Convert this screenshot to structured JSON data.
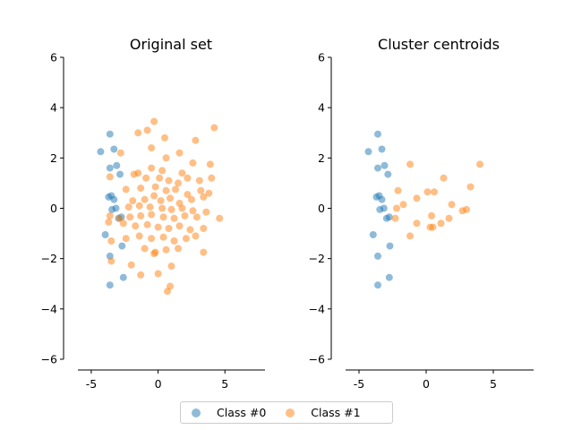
{
  "colors": {
    "class0": "#1f77b4",
    "class1": "#ff7f0e"
  },
  "legend": {
    "items": [
      {
        "label": "Class #0"
      },
      {
        "label": "Class #1"
      }
    ],
    "placement": "bottom-center"
  },
  "chart_data": [
    {
      "type": "scatter",
      "title": "Original set",
      "xlabel": "",
      "ylabel": "",
      "xlim": [
        -6,
        8
      ],
      "ylim": [
        -6,
        6
      ],
      "xticks": [
        "-5",
        "0",
        "5"
      ],
      "yticks": [
        "−6",
        "−4",
        "−2",
        "0",
        "2",
        "4",
        "6"
      ],
      "series": [
        {
          "name": "Class #0",
          "points": [
            [
              -4.3,
              2.25
            ],
            [
              -3.6,
              2.95
            ],
            [
              -3.3,
              2.35
            ],
            [
              -3.6,
              1.6
            ],
            [
              -3.1,
              1.7
            ],
            [
              -2.85,
              1.35
            ],
            [
              -3.7,
              0.45
            ],
            [
              -3.5,
              0.5
            ],
            [
              -3.3,
              0.35
            ],
            [
              -3.45,
              -0.05
            ],
            [
              -3.15,
              0.0
            ],
            [
              -2.95,
              -0.4
            ],
            [
              -2.75,
              -0.35
            ],
            [
              -3.95,
              -1.05
            ],
            [
              -2.7,
              -1.5
            ],
            [
              -3.6,
              -1.9
            ],
            [
              -3.6,
              -3.05
            ],
            [
              -2.6,
              -2.75
            ]
          ]
        },
        {
          "name": "Class #1",
          "points": [
            [
              -0.3,
              3.45
            ],
            [
              -0.8,
              3.1
            ],
            [
              -1.5,
              3.0
            ],
            [
              0.5,
              2.8
            ],
            [
              4.2,
              3.2
            ],
            [
              2.8,
              2.7
            ],
            [
              -0.5,
              2.4
            ],
            [
              0.6,
              2.0
            ],
            [
              1.6,
              2.2
            ],
            [
              2.6,
              1.8
            ],
            [
              -2.8,
              2.2
            ],
            [
              3.9,
              1.75
            ],
            [
              -0.5,
              1.6
            ],
            [
              0.3,
              1.5
            ],
            [
              1.8,
              1.4
            ],
            [
              -1.8,
              1.35
            ],
            [
              -1.5,
              1.4
            ],
            [
              -0.9,
              1.2
            ],
            [
              0.1,
              1.2
            ],
            [
              0.8,
              1.1
            ],
            [
              1.5,
              1.0
            ],
            [
              2.2,
              1.2
            ],
            [
              3.1,
              1.1
            ],
            [
              4.0,
              1.2
            ],
            [
              -3.6,
              1.25
            ],
            [
              -2.4,
              0.75
            ],
            [
              -1.3,
              0.8
            ],
            [
              -0.2,
              0.85
            ],
            [
              0.6,
              0.7
            ],
            [
              1.3,
              0.75
            ],
            [
              2.2,
              0.55
            ],
            [
              3.2,
              0.7
            ],
            [
              3.8,
              0.6
            ],
            [
              -1.9,
              0.3
            ],
            [
              -1.0,
              0.35
            ],
            [
              -0.3,
              0.5
            ],
            [
              0.2,
              0.3
            ],
            [
              0.9,
              0.4
            ],
            [
              1.6,
              0.2
            ],
            [
              2.5,
              0.35
            ],
            [
              3.4,
              0.45
            ],
            [
              -2.2,
              0.05
            ],
            [
              -1.4,
              0.1
            ],
            [
              -0.6,
              0.05
            ],
            [
              0.3,
              0.0
            ],
            [
              1.0,
              -0.05
            ],
            [
              1.8,
              0.0
            ],
            [
              2.6,
              -0.1
            ],
            [
              3.6,
              -0.15
            ],
            [
              4.6,
              -0.4
            ],
            [
              -3.6,
              -0.3
            ],
            [
              -2.9,
              -0.4
            ],
            [
              -2.1,
              -0.35
            ],
            [
              -1.3,
              -0.3
            ],
            [
              -0.5,
              -0.25
            ],
            [
              0.4,
              -0.35
            ],
            [
              1.2,
              -0.4
            ],
            [
              2.0,
              -0.3
            ],
            [
              2.9,
              -0.35
            ],
            [
              -3.7,
              -0.55
            ],
            [
              -2.6,
              -0.6
            ],
            [
              -1.7,
              -0.7
            ],
            [
              -0.8,
              -0.65
            ],
            [
              0.0,
              -0.75
            ],
            [
              0.8,
              -0.8
            ],
            [
              1.6,
              -0.7
            ],
            [
              2.4,
              -0.85
            ],
            [
              3.4,
              -0.8
            ],
            [
              -3.5,
              -1.3
            ],
            [
              -2.4,
              -1.2
            ],
            [
              -1.4,
              -1.1
            ],
            [
              -0.5,
              -1.2
            ],
            [
              0.4,
              -1.15
            ],
            [
              1.2,
              -1.3
            ],
            [
              2.1,
              -1.2
            ],
            [
              2.8,
              -1.1
            ],
            [
              -1.0,
              -1.6
            ],
            [
              -0.2,
              -1.75
            ],
            [
              0.6,
              -1.65
            ],
            [
              1.5,
              -1.6
            ],
            [
              3.4,
              -1.75
            ],
            [
              -3.5,
              -2.1
            ],
            [
              -2.0,
              -2.25
            ],
            [
              -0.3,
              -1.8
            ],
            [
              1.0,
              -2.3
            ],
            [
              -1.3,
              -2.65
            ],
            [
              0.0,
              -2.6
            ],
            [
              0.9,
              -3.1
            ],
            [
              0.7,
              -3.3
            ]
          ]
        }
      ]
    },
    {
      "type": "scatter",
      "title": "Cluster centroids",
      "xlabel": "",
      "ylabel": "",
      "xlim": [
        -6,
        8
      ],
      "ylim": [
        -6,
        6
      ],
      "xticks": [
        "-5",
        "0",
        "5"
      ],
      "yticks": [
        "−6",
        "−4",
        "−2",
        "0",
        "2",
        "4",
        "6"
      ],
      "series": [
        {
          "name": "Class #0",
          "points": [
            [
              -4.3,
              2.25
            ],
            [
              -3.6,
              2.95
            ],
            [
              -3.3,
              2.35
            ],
            [
              -3.6,
              1.6
            ],
            [
              -3.1,
              1.7
            ],
            [
              -2.85,
              1.35
            ],
            [
              -3.7,
              0.45
            ],
            [
              -3.5,
              0.5
            ],
            [
              -3.3,
              0.35
            ],
            [
              -3.45,
              -0.05
            ],
            [
              -3.15,
              0.0
            ],
            [
              -2.95,
              -0.4
            ],
            [
              -2.75,
              -0.35
            ],
            [
              -3.95,
              -1.05
            ],
            [
              -2.7,
              -1.5
            ],
            [
              -3.6,
              -1.9
            ],
            [
              -3.6,
              -3.05
            ],
            [
              -2.75,
              -2.75
            ]
          ]
        },
        {
          "name": "Class #1",
          "points": [
            [
              -1.2,
              1.75
            ],
            [
              1.3,
              1.2
            ],
            [
              4.0,
              1.75
            ],
            [
              -2.1,
              0.7
            ],
            [
              0.1,
              0.65
            ],
            [
              0.6,
              0.65
            ],
            [
              3.3,
              0.85
            ],
            [
              -0.7,
              0.4
            ],
            [
              1.9,
              0.15
            ],
            [
              -1.7,
              0.15
            ],
            [
              -2.2,
              0.0
            ],
            [
              3.0,
              -0.05
            ],
            [
              2.7,
              -0.1
            ],
            [
              -2.3,
              -0.4
            ],
            [
              0.4,
              -0.3
            ],
            [
              1.7,
              -0.4
            ],
            [
              -0.7,
              -0.6
            ],
            [
              1.1,
              -0.6
            ],
            [
              0.3,
              -0.75
            ],
            [
              0.5,
              -0.75
            ],
            [
              -1.2,
              -1.1
            ]
          ]
        }
      ]
    }
  ]
}
